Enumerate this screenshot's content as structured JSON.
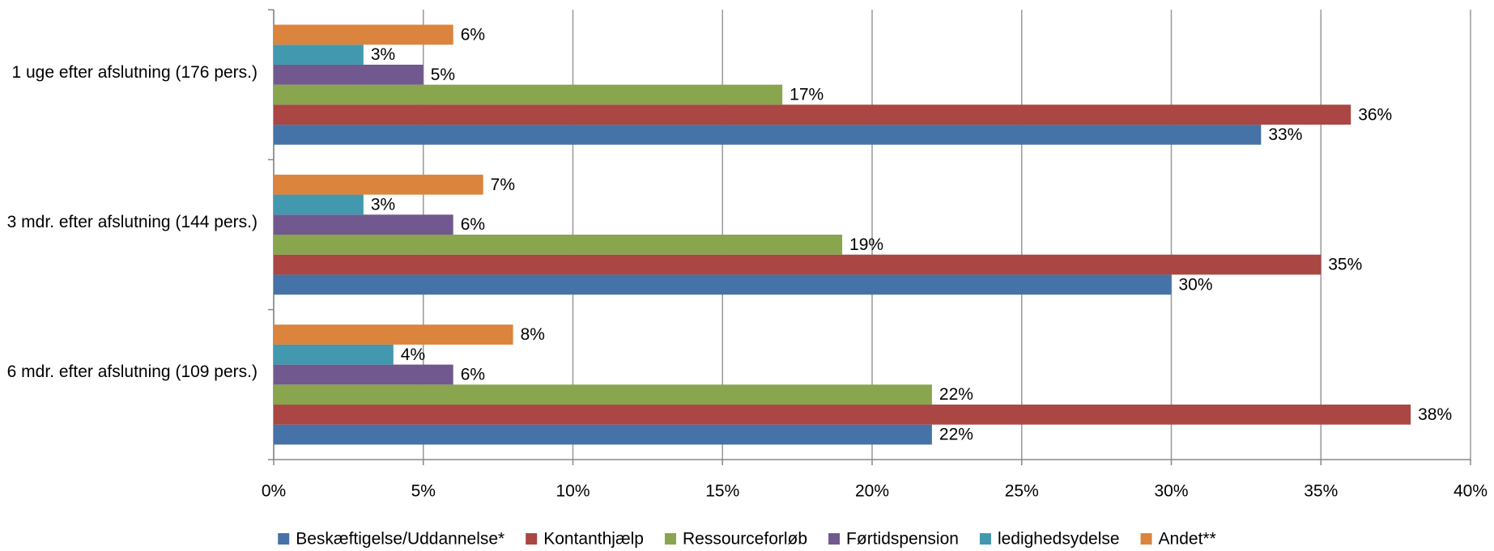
{
  "chart_data": {
    "type": "hbar",
    "categories": [
      "1 uge efter afslutning (176 pers.)",
      "3 mdr. efter afslutning (144 pers.)",
      "6 mdr. efter afslutning (109 pers.)"
    ],
    "series": [
      {
        "name": "Beskæftigelse/Uddannelse*",
        "color": "#4572a7",
        "values": [
          33,
          30,
          22
        ],
        "value_labels": [
          "33%",
          "30%",
          "22%"
        ]
      },
      {
        "name": "Kontanthjælp",
        "color": "#aa4643",
        "values": [
          36,
          35,
          38
        ],
        "value_labels": [
          "36%",
          "35%",
          "38%"
        ]
      },
      {
        "name": "Ressourceforløb",
        "color": "#89a54e",
        "values": [
          17,
          19,
          22
        ],
        "value_labels": [
          "17%",
          "19%",
          "22%"
        ]
      },
      {
        "name": "Førtidspension",
        "color": "#71588f",
        "values": [
          5,
          6,
          6
        ],
        "value_labels": [
          "5%",
          "6%",
          "6%"
        ]
      },
      {
        "name": "ledighedsydelse",
        "color": "#4198af",
        "values": [
          3,
          3,
          4
        ],
        "value_labels": [
          "3%",
          "3%",
          "4%"
        ]
      },
      {
        "name": "Andet**",
        "color": "#db843d",
        "values": [
          6,
          7,
          8
        ],
        "value_labels": [
          "6%",
          "7%",
          "8%"
        ]
      }
    ],
    "xlim": [
      0,
      40
    ],
    "xticks": [
      {
        "value": 0,
        "label": "0%"
      },
      {
        "value": 5,
        "label": "5%"
      },
      {
        "value": 10,
        "label": "10%"
      },
      {
        "value": 15,
        "label": "15%"
      },
      {
        "value": 20,
        "label": "20%"
      },
      {
        "value": 25,
        "label": "25%"
      },
      {
        "value": 30,
        "label": "30%"
      },
      {
        "value": 35,
        "label": "35%"
      },
      {
        "value": 40,
        "label": "40%"
      }
    ],
    "grid": true,
    "legend": "bottom"
  }
}
